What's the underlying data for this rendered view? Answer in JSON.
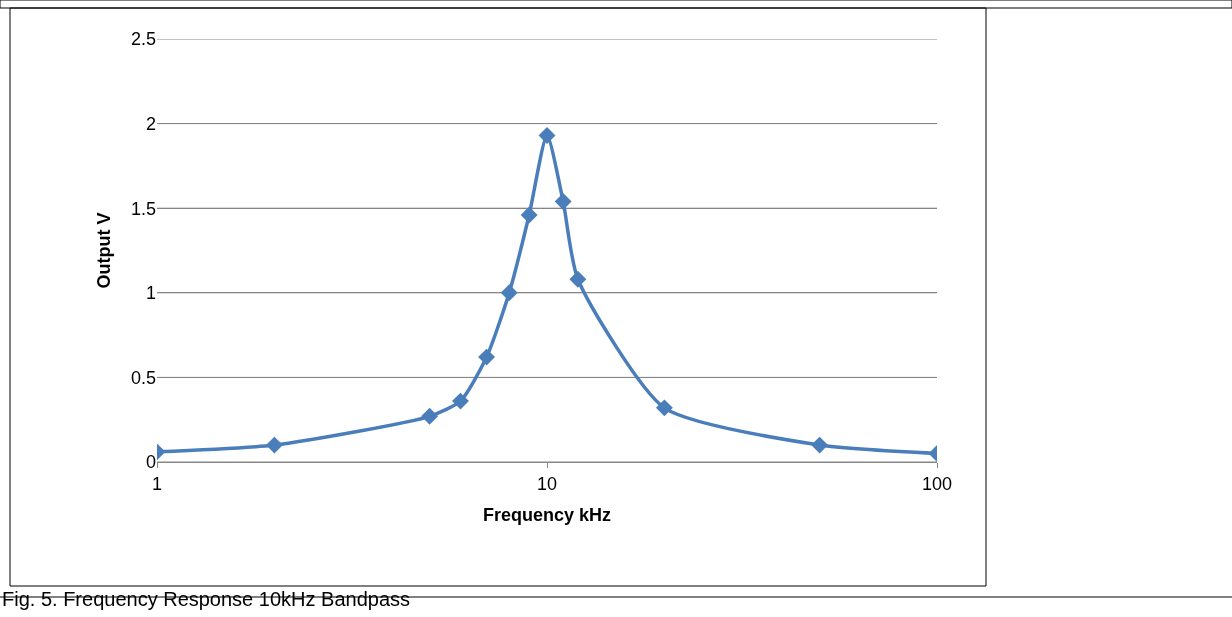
{
  "chart_data": {
    "type": "line",
    "xlabel": "Frequency kHz",
    "ylabel": "Output V",
    "annotations": [
      "Fig. 5. Frequency Response 10kHz Bandpass"
    ],
    "x": [
      1,
      2,
      5,
      6,
      7,
      8,
      9,
      10,
      11,
      12,
      20,
      50,
      100
    ],
    "series": [
      {
        "color": "#4a7ebb",
        "values": [
          0.06,
          0.1,
          0.27,
          0.36,
          0.62,
          1.0,
          1.46,
          1.93,
          1.54,
          1.08,
          0.32,
          0.1,
          0.05
        ]
      }
    ],
    "log": "x",
    "xlim": [
      1,
      100
    ],
    "xticks": [
      1,
      10,
      100
    ],
    "ylim": [
      0,
      2.5
    ],
    "yticks": [
      0,
      0.5,
      1,
      1.5,
      2,
      2.5
    ],
    "grid": "y",
    "marker": "diamond",
    "line_style": "solid"
  }
}
